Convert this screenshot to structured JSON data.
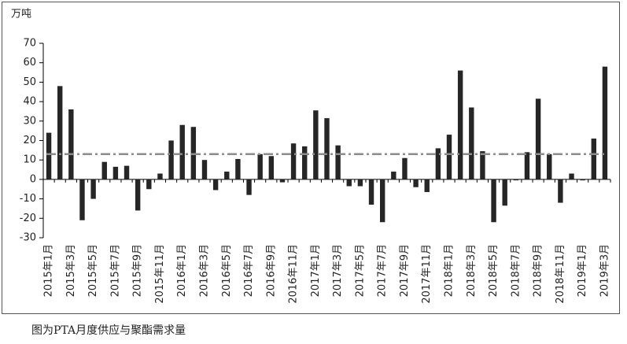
{
  "chart_data": {
    "type": "bar",
    "unit_label": "万吨",
    "caption": "图为PTA月度供应与聚酯需求量",
    "categories": [
      "2015年1月",
      null,
      "2015年3月",
      null,
      "2015年5月",
      null,
      "2015年7月",
      null,
      "2015年9月",
      null,
      "2015年11月",
      null,
      "2016年1月",
      null,
      "2016年3月",
      null,
      "2016年5月",
      null,
      "2016年7月",
      null,
      "2016年9月",
      null,
      "2016年11月",
      null,
      "2017年1月",
      null,
      "2017年3月",
      null,
      "2017年5月",
      null,
      "2017年7月",
      null,
      "2017年9月",
      null,
      "2017年11月",
      null,
      "2018年1月",
      null,
      "2018年3月",
      null,
      "2018年5月",
      null,
      "2018年7月",
      null,
      "2018年9月",
      null,
      "2018年11月",
      null,
      "2019年1月",
      null,
      "2019年3月"
    ],
    "values": [
      24,
      48,
      36,
      -21,
      -10,
      9,
      6.5,
      7,
      -16,
      -5,
      3,
      20,
      28,
      27,
      10,
      -5.5,
      4,
      10.5,
      -8,
      13,
      12,
      -1.5,
      18.5,
      17,
      35.5,
      31.5,
      17.5,
      -3.5,
      -3.5,
      -13,
      -22,
      4,
      11,
      -4,
      -6.5,
      16,
      23,
      56,
      37,
      14.5,
      -22,
      -13.5,
      -0.5,
      14,
      41.5,
      13,
      -12,
      3,
      -0.5,
      21,
      58
    ],
    "color": "#262626",
    "reference_line": 13,
    "reference_color": "#8c8c8c",
    "ylim": [
      -30,
      70
    ],
    "yticks": [
      -30,
      -20,
      -10,
      0,
      10,
      20,
      30,
      40,
      50,
      60,
      70
    ],
    "grid": false
  }
}
